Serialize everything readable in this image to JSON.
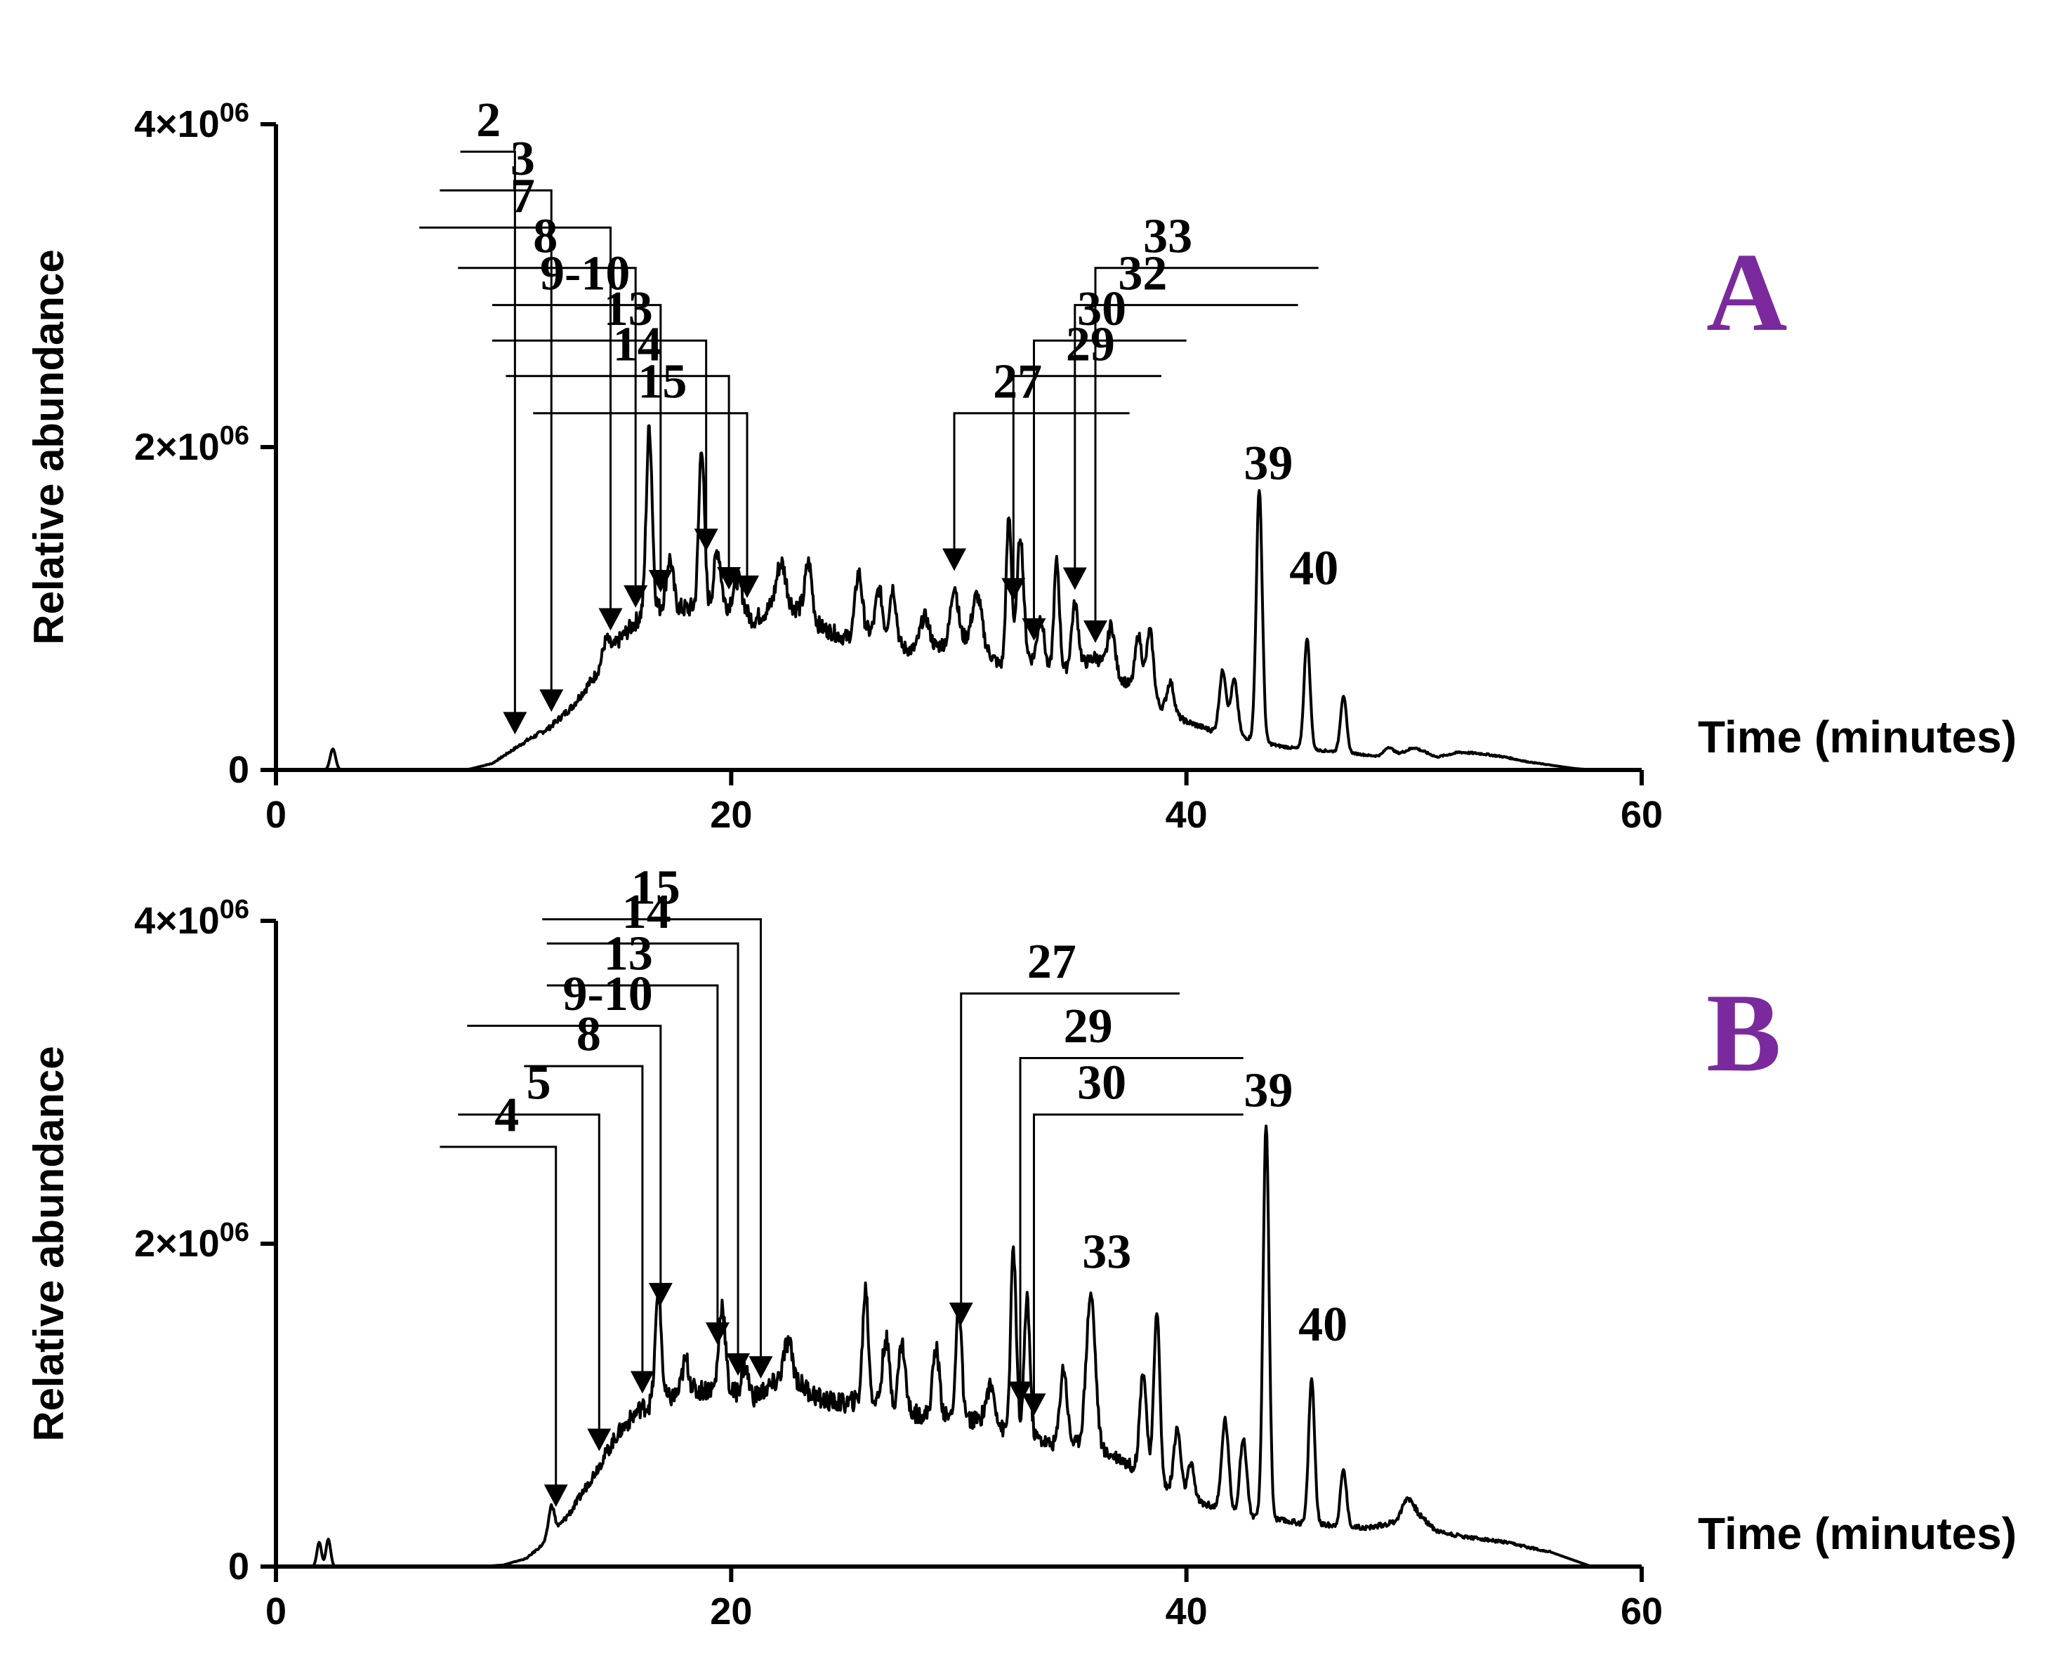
{
  "colors": {
    "panel_label": "#7b2a9e",
    "ink": "#000000"
  },
  "chart_data": [
    {
      "type": "line",
      "panel_label": "A",
      "xlabel": "Time (minutes)",
      "ylabel": "Relative abundance",
      "xlim": [
        0,
        60
      ],
      "ylim": [
        0,
        4000000
      ],
      "x_ticks": [
        "0",
        "20",
        "40",
        "60"
      ],
      "y_ticks": [
        {
          "value": 0,
          "base": "0",
          "exp": ""
        },
        {
          "value": 2000000,
          "base": "2×10",
          "exp": "06"
        },
        {
          "value": 4000000,
          "base": "4×10",
          "exp": "06"
        }
      ],
      "baseline": [
        [
          0,
          0
        ],
        [
          2.2,
          0
        ],
        [
          8,
          0
        ],
        [
          8.5,
          5000
        ],
        [
          9.5,
          40000
        ],
        [
          11,
          180000
        ],
        [
          12,
          260000
        ],
        [
          13,
          390000
        ],
        [
          14,
          580000
        ],
        [
          15,
          790000
        ],
        [
          16,
          950000
        ],
        [
          17,
          1010000
        ],
        [
          18,
          1000000
        ],
        [
          19,
          1020000
        ],
        [
          20,
          1000000
        ],
        [
          21,
          930000
        ],
        [
          22,
          1030000
        ],
        [
          23,
          1000000
        ],
        [
          24,
          880000
        ],
        [
          25,
          820000
        ],
        [
          26,
          860000
        ],
        [
          27,
          780000
        ],
        [
          28,
          740000
        ],
        [
          29,
          760000
        ],
        [
          30,
          830000
        ],
        [
          31,
          770000
        ],
        [
          32,
          620000
        ],
        [
          33,
          700000
        ],
        [
          34,
          610000
        ],
        [
          35,
          620000
        ],
        [
          36,
          700000
        ],
        [
          37,
          580000
        ],
        [
          38,
          470000
        ],
        [
          39,
          380000
        ],
        [
          40,
          300000
        ],
        [
          41,
          250000
        ],
        [
          42,
          210000
        ],
        [
          43,
          190000
        ],
        [
          44,
          150000
        ],
        [
          45,
          130000
        ],
        [
          46,
          120000
        ],
        [
          47,
          110000
        ],
        [
          48,
          90000
        ],
        [
          49,
          80000
        ],
        [
          50,
          140000
        ],
        [
          51,
          80000
        ],
        [
          52,
          110000
        ],
        [
          53,
          100000
        ],
        [
          54,
          80000
        ],
        [
          55,
          50000
        ],
        [
          56,
          30000
        ],
        [
          57,
          10000
        ],
        [
          57.8,
          0
        ],
        [
          60,
          0
        ]
      ],
      "peaks": [
        [
          2.5,
          130000,
          0.12
        ],
        [
          14.5,
          120000,
          0.15
        ],
        [
          16.4,
          1150000,
          0.13
        ],
        [
          17.3,
          300000,
          0.15
        ],
        [
          18.7,
          1000000,
          0.12
        ],
        [
          19.4,
          350000,
          0.15
        ],
        [
          20.3,
          200000,
          0.2
        ],
        [
          22.2,
          260000,
          0.2
        ],
        [
          23.4,
          330000,
          0.15
        ],
        [
          25.6,
          380000,
          0.15
        ],
        [
          26.5,
          300000,
          0.15
        ],
        [
          27.1,
          350000,
          0.15
        ],
        [
          28.5,
          200000,
          0.2
        ],
        [
          29.8,
          330000,
          0.15
        ],
        [
          30.8,
          300000,
          0.2
        ],
        [
          32.2,
          930000,
          0.12
        ],
        [
          32.7,
          780000,
          0.14
        ],
        [
          33.6,
          300000,
          0.15
        ],
        [
          34.3,
          680000,
          0.12
        ],
        [
          35.1,
          400000,
          0.15
        ],
        [
          36.7,
          280000,
          0.15
        ],
        [
          37.9,
          350000,
          0.15
        ],
        [
          38.4,
          430000,
          0.15
        ],
        [
          39.3,
          190000,
          0.15
        ],
        [
          41.6,
          390000,
          0.15
        ],
        [
          42.1,
          350000,
          0.15
        ],
        [
          43.2,
          1560000,
          0.13
        ],
        [
          45.3,
          690000,
          0.13
        ],
        [
          46.9,
          350000,
          0.13
        ],
        [
          48.9,
          60000,
          0.2
        ]
      ],
      "annotations": [
        {
          "label": "2",
          "x": 10.5,
          "text_x": 8.8,
          "text_y": 3840000,
          "bar_from": 8.1,
          "bar_y": 3830000
        },
        {
          "label": "3",
          "x": 12.1,
          "text_x": 10.3,
          "text_y": 3600000,
          "bar_from": 7.2,
          "bar_y": 3590000
        },
        {
          "label": "7",
          "x": 14.7,
          "text_x": 10.3,
          "text_y": 3370000,
          "bar_from": 6.3,
          "bar_y": 3360000
        },
        {
          "label": "8",
          "x": 15.8,
          "text_x": 11.3,
          "text_y": 3120000,
          "bar_from": 8.0,
          "bar_y": 3110000
        },
        {
          "label": "9-10",
          "x": 16.9,
          "text_x": 11.6,
          "text_y": 2890000,
          "bar_from": 9.5,
          "bar_y": 2880000
        },
        {
          "label": "13",
          "x": 18.9,
          "text_x": 14.4,
          "text_y": 2670000,
          "bar_from": 9.5,
          "bar_y": 2660000
        },
        {
          "label": "14",
          "x": 19.9,
          "text_x": 14.8,
          "text_y": 2450000,
          "bar_from": 10.1,
          "bar_y": 2440000
        },
        {
          "label": "15",
          "x": 20.7,
          "text_x": 15.9,
          "text_y": 2220000,
          "bar_from": 11.3,
          "bar_y": 2210000
        },
        {
          "label": "27",
          "x": 29.8,
          "text_x": 31.5,
          "text_y": 2220000,
          "bar_from": 37.5,
          "bar_y": 2210000
        },
        {
          "label": "29",
          "x": 32.4,
          "text_x": 34.7,
          "text_y": 2450000,
          "bar_from": 38.9,
          "bar_y": 2440000
        },
        {
          "label": "30",
          "x": 33.3,
          "text_x": 35.2,
          "text_y": 2670000,
          "bar_from": 40.0,
          "bar_y": 2660000
        },
        {
          "label": "32",
          "x": 35.1,
          "text_x": 37.0,
          "text_y": 2890000,
          "bar_from": 44.9,
          "bar_y": 2880000
        },
        {
          "label": "33",
          "x": 36.0,
          "text_x": 38.1,
          "text_y": 3120000,
          "bar_from": 45.8,
          "bar_y": 3110000
        }
      ],
      "peak_labels": [
        {
          "label": "39",
          "x": 43.6,
          "y": 1800000
        },
        {
          "label": "40",
          "x": 45.6,
          "y": 1150000
        }
      ]
    },
    {
      "type": "line",
      "panel_label": "B",
      "xlabel": "Time (minutes)",
      "ylabel": "Relative abundance",
      "xlim": [
        0,
        60
      ],
      "ylim": [
        0,
        4000000
      ],
      "x_ticks": [
        "0",
        "20",
        "40",
        "60"
      ],
      "y_ticks": [
        {
          "value": 0,
          "base": "0",
          "exp": ""
        },
        {
          "value": 2000000,
          "base": "2×10",
          "exp": "06"
        },
        {
          "value": 4000000,
          "base": "4×10",
          "exp": "06"
        }
      ],
      "baseline": [
        [
          0,
          0
        ],
        [
          1.6,
          0
        ],
        [
          9,
          0
        ],
        [
          10,
          10000
        ],
        [
          11,
          50000
        ],
        [
          12,
          170000
        ],
        [
          13,
          350000
        ],
        [
          14,
          580000
        ],
        [
          15,
          820000
        ],
        [
          16,
          980000
        ],
        [
          17,
          1030000
        ],
        [
          18,
          1080000
        ],
        [
          19,
          1100000
        ],
        [
          20,
          1080000
        ],
        [
          21,
          1050000
        ],
        [
          22,
          1140000
        ],
        [
          23,
          1130000
        ],
        [
          24,
          1030000
        ],
        [
          25,
          1010000
        ],
        [
          26,
          1050000
        ],
        [
          27,
          980000
        ],
        [
          28,
          950000
        ],
        [
          29,
          930000
        ],
        [
          30,
          920000
        ],
        [
          31,
          900000
        ],
        [
          32,
          840000
        ],
        [
          33,
          830000
        ],
        [
          34,
          760000
        ],
        [
          35,
          770000
        ],
        [
          36,
          720000
        ],
        [
          37,
          680000
        ],
        [
          38,
          580000
        ],
        [
          39,
          500000
        ],
        [
          40,
          420000
        ],
        [
          41,
          380000
        ],
        [
          42,
          340000
        ],
        [
          43,
          300000
        ],
        [
          44,
          290000
        ],
        [
          45,
          270000
        ],
        [
          46,
          260000
        ],
        [
          47,
          250000
        ],
        [
          48,
          240000
        ],
        [
          49,
          270000
        ],
        [
          50,
          350000
        ],
        [
          51,
          220000
        ],
        [
          52,
          190000
        ],
        [
          53,
          170000
        ],
        [
          54,
          150000
        ],
        [
          55,
          120000
        ],
        [
          56,
          90000
        ],
        [
          57,
          40000
        ],
        [
          57.8,
          0
        ],
        [
          60,
          0
        ]
      ],
      "peaks": [
        [
          1.9,
          150000,
          0.1
        ],
        [
          2.3,
          170000,
          0.1
        ],
        [
          12.1,
          190000,
          0.13
        ],
        [
          16.8,
          680000,
          0.13
        ],
        [
          18.0,
          200000,
          0.15
        ],
        [
          19.6,
          540000,
          0.14
        ],
        [
          20.6,
          180000,
          0.15
        ],
        [
          22.5,
          250000,
          0.2
        ],
        [
          25.9,
          680000,
          0.12
        ],
        [
          26.8,
          420000,
          0.15
        ],
        [
          27.5,
          420000,
          0.15
        ],
        [
          29.0,
          420000,
          0.15
        ],
        [
          30.0,
          660000,
          0.13
        ],
        [
          31.4,
          240000,
          0.2
        ],
        [
          32.4,
          1130000,
          0.12
        ],
        [
          33.0,
          850000,
          0.12
        ],
        [
          34.6,
          470000,
          0.15
        ],
        [
          35.8,
          960000,
          0.2
        ],
        [
          38.1,
          640000,
          0.15
        ],
        [
          38.7,
          1070000,
          0.13
        ],
        [
          39.6,
          400000,
          0.15
        ],
        [
          40.2,
          220000,
          0.15
        ],
        [
          41.7,
          560000,
          0.15
        ],
        [
          42.5,
          470000,
          0.15
        ],
        [
          43.5,
          2450000,
          0.13
        ],
        [
          45.5,
          900000,
          0.13
        ],
        [
          46.9,
          350000,
          0.13
        ],
        [
          49.7,
          100000,
          0.2
        ]
      ],
      "annotations": [
        {
          "label": "4",
          "x": 12.3,
          "text_x": 9.6,
          "text_y": 2610000,
          "bar_from": 7.2,
          "bar_y": 2600000
        },
        {
          "label": "5",
          "x": 14.2,
          "text_x": 11.0,
          "text_y": 2810000,
          "bar_from": 8.0,
          "bar_y": 2800000
        },
        {
          "label": "8",
          "x": 16.1,
          "text_x": 13.2,
          "text_y": 3110000,
          "bar_from": 10.9,
          "bar_y": 3100000
        },
        {
          "label": "9-10",
          "x": 16.9,
          "text_x": 12.6,
          "text_y": 3360000,
          "bar_from": 8.4,
          "bar_y": 3350000
        },
        {
          "label": "13",
          "x": 19.4,
          "text_x": 14.4,
          "text_y": 3610000,
          "bar_from": 11.9,
          "bar_y": 3600000
        },
        {
          "label": "14",
          "x": 20.3,
          "text_x": 15.2,
          "text_y": 3870000,
          "bar_from": 11.9,
          "bar_y": 3860000
        },
        {
          "label": "15",
          "x": 21.3,
          "text_x": 15.6,
          "text_y": 4020000,
          "bar_from": 11.7,
          "bar_y": 4010000
        },
        {
          "label": "27",
          "x": 30.1,
          "text_x": 33.0,
          "text_y": 3560000,
          "bar_from": 39.7,
          "bar_y": 3550000
        },
        {
          "label": "29",
          "x": 32.7,
          "text_x": 34.6,
          "text_y": 3160000,
          "bar_from": 42.5,
          "bar_y": 3150000
        },
        {
          "label": "30",
          "x": 33.3,
          "text_x": 35.2,
          "text_y": 2810000,
          "bar_from": 42.5,
          "bar_y": 2800000
        }
      ],
      "peak_labels": [
        {
          "label": "33",
          "x": 36.5,
          "y": 1850000
        },
        {
          "label": "39",
          "x": 43.6,
          "y": 2850000
        },
        {
          "label": "40",
          "x": 46.0,
          "y": 1400000
        }
      ]
    }
  ]
}
